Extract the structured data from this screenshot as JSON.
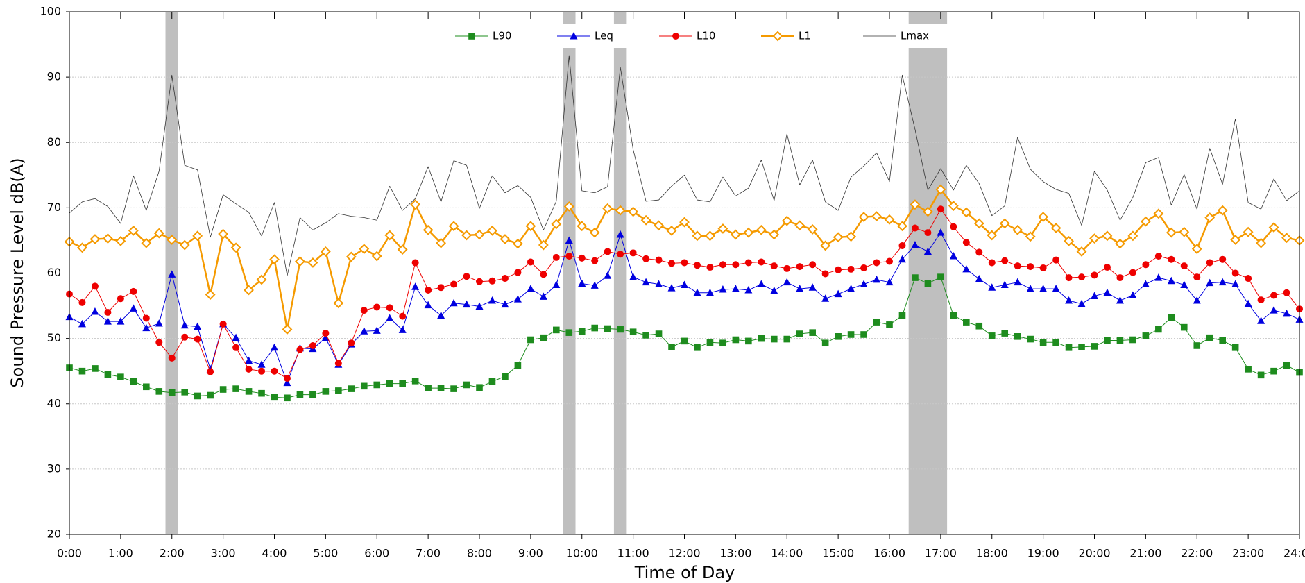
{
  "chart_data": {
    "type": "line",
    "x_label": "Time of Day",
    "y_label": "Sound Pressure Level dB(A)",
    "xlim": [
      0,
      24
    ],
    "ylim": [
      20,
      100
    ],
    "yticks": [
      20,
      30,
      40,
      50,
      60,
      70,
      80,
      90,
      100
    ],
    "xticks": [
      {
        "value": 0,
        "label": "0:00"
      },
      {
        "value": 1,
        "label": "1:00"
      },
      {
        "value": 2,
        "label": "2:00"
      },
      {
        "value": 3,
        "label": "3:00"
      },
      {
        "value": 4,
        "label": "4:00"
      },
      {
        "value": 5,
        "label": "5:00"
      },
      {
        "value": 6,
        "label": "6:00"
      },
      {
        "value": 7,
        "label": "7:00"
      },
      {
        "value": 8,
        "label": "8:00"
      },
      {
        "value": 9,
        "label": "9:00"
      },
      {
        "value": 10,
        "label": "10:00"
      },
      {
        "value": 11,
        "label": "11:00"
      },
      {
        "value": 12,
        "label": "12:00"
      },
      {
        "value": 13,
        "label": "13:00"
      },
      {
        "value": 14,
        "label": "14:00"
      },
      {
        "value": 15,
        "label": "15:00"
      },
      {
        "value": 16,
        "label": "16:00"
      },
      {
        "value": 17,
        "label": "17:00"
      },
      {
        "value": 18,
        "label": "18:00"
      },
      {
        "value": 19,
        "label": "19:00"
      },
      {
        "value": 20,
        "label": "20:00"
      },
      {
        "value": 21,
        "label": "21:00"
      },
      {
        "value": 22,
        "label": "22:00"
      },
      {
        "value": 23,
        "label": "23:00"
      },
      {
        "value": 24,
        "label": "24:00"
      }
    ],
    "grid": true,
    "shaded_regions": [
      [
        1.875,
        2.125
      ],
      [
        9.625,
        9.875
      ],
      [
        10.625,
        10.875
      ],
      [
        16.375,
        17.125
      ]
    ],
    "shade_color": "#bfbfbf",
    "x": [
      0,
      0.25,
      0.5,
      0.75,
      1,
      1.25,
      1.5,
      1.75,
      2,
      2.25,
      2.5,
      2.75,
      3,
      3.25,
      3.5,
      3.75,
      4,
      4.25,
      4.5,
      4.75,
      5,
      5.25,
      5.5,
      5.75,
      6,
      6.25,
      6.5,
      6.75,
      7,
      7.25,
      7.5,
      7.75,
      8,
      8.25,
      8.5,
      8.75,
      9,
      9.25,
      9.5,
      9.75,
      10,
      10.25,
      10.5,
      10.75,
      11,
      11.25,
      11.5,
      11.75,
      12,
      12.25,
      12.5,
      12.75,
      13,
      13.25,
      13.5,
      13.75,
      14,
      14.25,
      14.5,
      14.75,
      15,
      15.25,
      15.5,
      15.75,
      16,
      16.25,
      16.5,
      16.75,
      17,
      17.25,
      17.5,
      17.75,
      18,
      18.25,
      18.5,
      18.75,
      19,
      19.25,
      19.5,
      19.75,
      20,
      20.25,
      20.5,
      20.75,
      21,
      21.25,
      21.5,
      21.75,
      22,
      22.25,
      22.5,
      22.75,
      23,
      23.25,
      23.5,
      23.75,
      24
    ],
    "series": [
      {
        "name": "L90",
        "color": "#1e8c1e",
        "marker": "square",
        "line_width": 1,
        "values": [
          45.5,
          45.0,
          45.4,
          44.5,
          44.1,
          43.4,
          42.6,
          41.9,
          41.7,
          41.8,
          41.2,
          41.3,
          42.2,
          42.3,
          41.9,
          41.6,
          41.0,
          40.9,
          41.4,
          41.4,
          41.9,
          42.0,
          42.3,
          42.7,
          42.9,
          43.1,
          43.1,
          43.5,
          42.4,
          42.4,
          42.3,
          42.9,
          42.5,
          43.4,
          44.2,
          45.9,
          49.8,
          50.1,
          51.3,
          50.9,
          51.1,
          51.6,
          51.5,
          51.4,
          51.0,
          50.5,
          50.7,
          48.7,
          49.6,
          48.6,
          49.4,
          49.3,
          49.8,
          49.6,
          50.0,
          49.9,
          49.9,
          50.7,
          50.9,
          49.3,
          50.3,
          50.6,
          50.6,
          52.5,
          52.1,
          53.5,
          59.3,
          58.4,
          59.4,
          53.5,
          52.5,
          51.9,
          50.4,
          50.8,
          50.3,
          49.9,
          49.4,
          49.4,
          48.6,
          48.7,
          48.8,
          49.7,
          49.7,
          49.8,
          50.4,
          51.4,
          53.2,
          51.7,
          48.9,
          50.1,
          49.7,
          48.6,
          45.3,
          44.4,
          45.0,
          45.9,
          44.8
        ]
      },
      {
        "name": "Leq",
        "color": "#0000e0",
        "marker": "triangle",
        "line_width": 1,
        "values": [
          53.3,
          52.2,
          54.1,
          52.6,
          52.6,
          54.6,
          51.6,
          52.3,
          59.8,
          52.0,
          51.8,
          45.3,
          52.2,
          50.1,
          46.6,
          46.0,
          48.6,
          43.2,
          48.5,
          48.4,
          50.1,
          46.0,
          49.1,
          51.1,
          51.2,
          53.1,
          51.3,
          57.9,
          55.1,
          53.5,
          55.4,
          55.2,
          54.9,
          55.8,
          55.2,
          56.0,
          57.6,
          56.4,
          58.2,
          65.0,
          58.4,
          58.1,
          59.6,
          65.9,
          59.4,
          58.6,
          58.3,
          57.7,
          58.2,
          57.0,
          57.0,
          57.5,
          57.6,
          57.4,
          58.3,
          57.3,
          58.6,
          57.6,
          57.8,
          56.1,
          56.8,
          57.6,
          58.3,
          59.0,
          58.6,
          62.1,
          64.3,
          63.3,
          66.2,
          62.6,
          60.6,
          59.1,
          57.8,
          58.2,
          58.6,
          57.6,
          57.6,
          57.6,
          55.8,
          55.3,
          56.5,
          57.0,
          55.8,
          56.6,
          58.3,
          59.3,
          58.8,
          58.2,
          55.8,
          58.5,
          58.6,
          58.3,
          55.3,
          52.7,
          54.3,
          53.8,
          52.9
        ]
      },
      {
        "name": "L10",
        "color": "#ee0000",
        "marker": "circle",
        "line_width": 1,
        "values": [
          56.8,
          55.5,
          58.0,
          54.0,
          56.1,
          57.2,
          53.1,
          49.4,
          47.0,
          50.2,
          49.9,
          44.9,
          52.2,
          48.6,
          45.3,
          45.0,
          45.0,
          43.9,
          48.3,
          48.9,
          50.8,
          46.2,
          49.3,
          54.3,
          54.8,
          54.7,
          53.4,
          61.6,
          57.4,
          57.8,
          58.3,
          59.5,
          58.7,
          58.8,
          59.2,
          60.1,
          61.7,
          59.8,
          62.4,
          62.6,
          62.3,
          61.9,
          63.3,
          62.9,
          63.1,
          62.2,
          62.0,
          61.5,
          61.6,
          61.2,
          60.9,
          61.3,
          61.3,
          61.6,
          61.7,
          61.1,
          60.7,
          61.0,
          61.3,
          59.9,
          60.5,
          60.6,
          60.8,
          61.6,
          61.8,
          64.2,
          66.9,
          66.2,
          69.8,
          67.1,
          64.7,
          63.2,
          61.6,
          61.9,
          61.1,
          61.0,
          60.8,
          62.0,
          59.3,
          59.4,
          59.7,
          60.9,
          59.3,
          60.1,
          61.3,
          62.6,
          62.1,
          61.1,
          59.4,
          61.6,
          62.1,
          60.0,
          59.2,
          55.9,
          56.6,
          57.0,
          54.5
        ]
      },
      {
        "name": "L1",
        "color": "#f59a00",
        "marker": "diamond",
        "line_width": 2.5,
        "values": [
          64.8,
          63.9,
          65.2,
          65.3,
          64.9,
          66.5,
          64.6,
          66.1,
          65.1,
          64.3,
          65.7,
          56.7,
          66.0,
          63.9,
          57.4,
          59.0,
          62.1,
          51.4,
          61.8,
          61.6,
          63.3,
          55.4,
          62.5,
          63.7,
          62.6,
          65.8,
          63.6,
          70.5,
          66.6,
          64.6,
          67.2,
          65.8,
          65.9,
          66.5,
          65.2,
          64.5,
          67.2,
          64.3,
          67.5,
          70.2,
          67.2,
          66.2,
          69.9,
          69.6,
          69.4,
          68.1,
          67.3,
          66.5,
          67.8,
          65.7,
          65.7,
          66.8,
          65.9,
          66.2,
          66.6,
          65.9,
          68.0,
          67.3,
          66.7,
          64.2,
          65.5,
          65.6,
          68.6,
          68.7,
          68.2,
          67.2,
          70.5,
          69.4,
          72.8,
          70.3,
          69.3,
          67.6,
          65.8,
          67.6,
          66.6,
          65.6,
          68.6,
          66.9,
          64.9,
          63.3,
          65.3,
          65.7,
          64.5,
          65.7,
          67.9,
          69.1,
          66.2,
          66.3,
          63.7,
          68.5,
          69.6,
          65.1,
          66.3,
          64.6,
          67.0,
          65.4,
          65.0
        ]
      },
      {
        "name": "Lmax",
        "color": "#333333",
        "marker": "none",
        "line_width": 0.8,
        "values": [
          69.2,
          70.9,
          71.4,
          70.2,
          67.6,
          74.9,
          69.6,
          75.6,
          90.3,
          76.5,
          75.8,
          65.5,
          72.0,
          70.6,
          69.3,
          65.7,
          70.8,
          59.6,
          68.5,
          66.6,
          67.7,
          69.1,
          68.7,
          68.5,
          68.1,
          73.3,
          69.6,
          71.4,
          76.3,
          70.9,
          77.2,
          76.5,
          69.9,
          74.9,
          72.3,
          73.4,
          71.6,
          66.6,
          71.0,
          93.3,
          72.6,
          72.3,
          73.2,
          91.5,
          78.9,
          71.0,
          71.2,
          73.3,
          75.0,
          71.2,
          70.9,
          74.7,
          71.8,
          73.0,
          77.3,
          71.1,
          81.3,
          73.5,
          77.3,
          70.9,
          69.6,
          74.7,
          76.4,
          78.4,
          74.0,
          90.3,
          82.0,
          72.7,
          76.0,
          72.7,
          76.5,
          73.7,
          68.8,
          70.3,
          80.8,
          75.9,
          74.0,
          72.8,
          72.2,
          67.3,
          75.6,
          72.7,
          68.1,
          71.6,
          76.9,
          77.7,
          70.4,
          75.1,
          69.8,
          79.1,
          73.6,
          83.6,
          70.8,
          69.8,
          74.4,
          71.1,
          72.6
        ]
      }
    ]
  }
}
